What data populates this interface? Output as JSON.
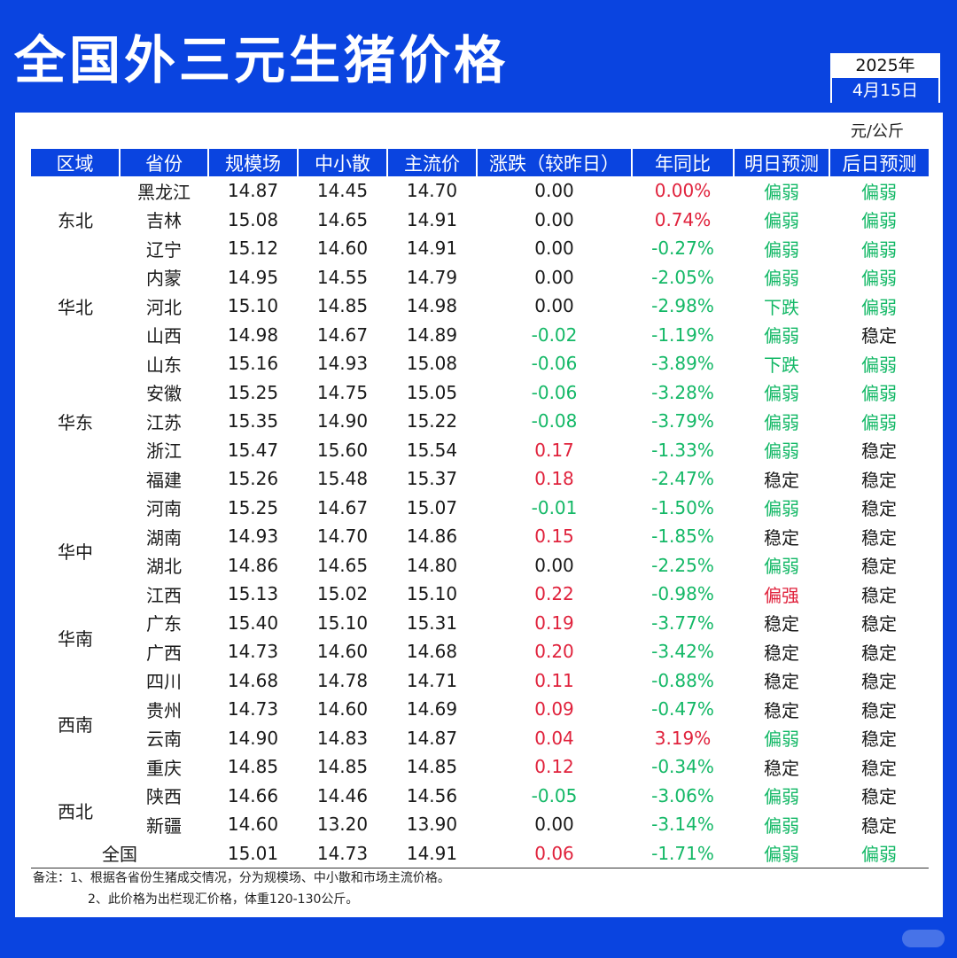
{
  "title": "全国外三元生猪价格",
  "date": {
    "year": "2025年",
    "day": "4月15日"
  },
  "unit": "元/公斤",
  "colors": {
    "up": "#e0223c",
    "down": "#13b866",
    "header_bg": "#0a44e0"
  },
  "table": {
    "headers": [
      "区域",
      "省份",
      "规模场",
      "中小散",
      "主流价",
      "涨跌（较昨日）",
      "年同比",
      "明日预测",
      "后日预测"
    ],
    "groups": [
      {
        "region": "东北",
        "rows": [
          {
            "province": "黑龙江",
            "large": "14.87",
            "small": "14.45",
            "main": "14.70",
            "change": "0.00",
            "change_color": "black",
            "yoy": "0.00%",
            "yoy_color": "red",
            "tomorrow": "偏弱",
            "tomorrow_color": "green",
            "after": "偏弱",
            "after_color": "green"
          },
          {
            "province": "吉林",
            "large": "15.08",
            "small": "14.65",
            "main": "14.91",
            "change": "0.00",
            "change_color": "black",
            "yoy": "0.74%",
            "yoy_color": "red",
            "tomorrow": "偏弱",
            "tomorrow_color": "green",
            "after": "偏弱",
            "after_color": "green"
          },
          {
            "province": "辽宁",
            "large": "15.12",
            "small": "14.60",
            "main": "14.91",
            "change": "0.00",
            "change_color": "black",
            "yoy": "-0.27%",
            "yoy_color": "green",
            "tomorrow": "偏弱",
            "tomorrow_color": "green",
            "after": "偏弱",
            "after_color": "green"
          }
        ]
      },
      {
        "region": "华北",
        "rows": [
          {
            "province": "内蒙",
            "large": "14.95",
            "small": "14.55",
            "main": "14.79",
            "change": "0.00",
            "change_color": "black",
            "yoy": "-2.05%",
            "yoy_color": "green",
            "tomorrow": "偏弱",
            "tomorrow_color": "green",
            "after": "偏弱",
            "after_color": "green"
          },
          {
            "province": "河北",
            "large": "15.10",
            "small": "14.85",
            "main": "14.98",
            "change": "0.00",
            "change_color": "black",
            "yoy": "-2.98%",
            "yoy_color": "green",
            "tomorrow": "下跌",
            "tomorrow_color": "green",
            "after": "偏弱",
            "after_color": "green"
          },
          {
            "province": "山西",
            "large": "14.98",
            "small": "14.67",
            "main": "14.89",
            "change": "-0.02",
            "change_color": "green",
            "yoy": "-1.19%",
            "yoy_color": "green",
            "tomorrow": "偏弱",
            "tomorrow_color": "green",
            "after": "稳定",
            "after_color": "black"
          }
        ]
      },
      {
        "region": "华东",
        "rows": [
          {
            "province": "山东",
            "large": "15.16",
            "small": "14.93",
            "main": "15.08",
            "change": "-0.06",
            "change_color": "green",
            "yoy": "-3.89%",
            "yoy_color": "green",
            "tomorrow": "下跌",
            "tomorrow_color": "green",
            "after": "偏弱",
            "after_color": "green"
          },
          {
            "province": "安徽",
            "large": "15.25",
            "small": "14.75",
            "main": "15.05",
            "change": "-0.06",
            "change_color": "green",
            "yoy": "-3.28%",
            "yoy_color": "green",
            "tomorrow": "偏弱",
            "tomorrow_color": "green",
            "after": "偏弱",
            "after_color": "green"
          },
          {
            "province": "江苏",
            "large": "15.35",
            "small": "14.90",
            "main": "15.22",
            "change": "-0.08",
            "change_color": "green",
            "yoy": "-3.79%",
            "yoy_color": "green",
            "tomorrow": "偏弱",
            "tomorrow_color": "green",
            "after": "偏弱",
            "after_color": "green"
          },
          {
            "province": "浙江",
            "large": "15.47",
            "small": "15.60",
            "main": "15.54",
            "change": "0.17",
            "change_color": "red",
            "yoy": "-1.33%",
            "yoy_color": "green",
            "tomorrow": "偏弱",
            "tomorrow_color": "green",
            "after": "稳定",
            "after_color": "black"
          },
          {
            "province": "福建",
            "large": "15.26",
            "small": "15.48",
            "main": "15.37",
            "change": "0.18",
            "change_color": "red",
            "yoy": "-2.47%",
            "yoy_color": "green",
            "tomorrow": "稳定",
            "tomorrow_color": "black",
            "after": "稳定",
            "after_color": "black"
          }
        ]
      },
      {
        "region": "华中",
        "rows": [
          {
            "province": "河南",
            "large": "15.25",
            "small": "14.67",
            "main": "15.07",
            "change": "-0.01",
            "change_color": "green",
            "yoy": "-1.50%",
            "yoy_color": "green",
            "tomorrow": "偏弱",
            "tomorrow_color": "green",
            "after": "稳定",
            "after_color": "black"
          },
          {
            "province": "湖南",
            "large": "14.93",
            "small": "14.70",
            "main": "14.86",
            "change": "0.15",
            "change_color": "red",
            "yoy": "-1.85%",
            "yoy_color": "green",
            "tomorrow": "稳定",
            "tomorrow_color": "black",
            "after": "稳定",
            "after_color": "black"
          },
          {
            "province": "湖北",
            "large": "14.86",
            "small": "14.65",
            "main": "14.80",
            "change": "0.00",
            "change_color": "black",
            "yoy": "-2.25%",
            "yoy_color": "green",
            "tomorrow": "偏弱",
            "tomorrow_color": "green",
            "after": "稳定",
            "after_color": "black"
          },
          {
            "province": "江西",
            "large": "15.13",
            "small": "15.02",
            "main": "15.10",
            "change": "0.22",
            "change_color": "red",
            "yoy": "-0.98%",
            "yoy_color": "green",
            "tomorrow": "偏强",
            "tomorrow_color": "red",
            "after": "稳定",
            "after_color": "black"
          }
        ]
      },
      {
        "region": "华南",
        "rows": [
          {
            "province": "广东",
            "large": "15.40",
            "small": "15.10",
            "main": "15.31",
            "change": "0.19",
            "change_color": "red",
            "yoy": "-3.77%",
            "yoy_color": "green",
            "tomorrow": "稳定",
            "tomorrow_color": "black",
            "after": "稳定",
            "after_color": "black"
          },
          {
            "province": "广西",
            "large": "14.73",
            "small": "14.60",
            "main": "14.68",
            "change": "0.20",
            "change_color": "red",
            "yoy": "-3.42%",
            "yoy_color": "green",
            "tomorrow": "稳定",
            "tomorrow_color": "black",
            "after": "稳定",
            "after_color": "black"
          }
        ]
      },
      {
        "region": "西南",
        "rows": [
          {
            "province": "四川",
            "large": "14.68",
            "small": "14.78",
            "main": "14.71",
            "change": "0.11",
            "change_color": "red",
            "yoy": "-0.88%",
            "yoy_color": "green",
            "tomorrow": "稳定",
            "tomorrow_color": "black",
            "after": "稳定",
            "after_color": "black"
          },
          {
            "province": "贵州",
            "large": "14.73",
            "small": "14.60",
            "main": "14.69",
            "change": "0.09",
            "change_color": "red",
            "yoy": "-0.47%",
            "yoy_color": "green",
            "tomorrow": "稳定",
            "tomorrow_color": "black",
            "after": "稳定",
            "after_color": "black"
          },
          {
            "province": "云南",
            "large": "14.90",
            "small": "14.83",
            "main": "14.87",
            "change": "0.04",
            "change_color": "red",
            "yoy": "3.19%",
            "yoy_color": "red",
            "tomorrow": "偏弱",
            "tomorrow_color": "green",
            "after": "稳定",
            "after_color": "black"
          },
          {
            "province": "重庆",
            "large": "14.85",
            "small": "14.85",
            "main": "14.85",
            "change": "0.12",
            "change_color": "red",
            "yoy": "-0.34%",
            "yoy_color": "green",
            "tomorrow": "稳定",
            "tomorrow_color": "black",
            "after": "稳定",
            "after_color": "black"
          }
        ]
      },
      {
        "region": "西北",
        "rows": [
          {
            "province": "陕西",
            "large": "14.66",
            "small": "14.46",
            "main": "14.56",
            "change": "-0.05",
            "change_color": "green",
            "yoy": "-3.06%",
            "yoy_color": "green",
            "tomorrow": "偏弱",
            "tomorrow_color": "green",
            "after": "稳定",
            "after_color": "black"
          },
          {
            "province": "新疆",
            "large": "14.60",
            "small": "13.20",
            "main": "13.90",
            "change": "0.00",
            "change_color": "black",
            "yoy": "-3.14%",
            "yoy_color": "green",
            "tomorrow": "偏弱",
            "tomorrow_color": "green",
            "after": "稳定",
            "after_color": "black"
          }
        ]
      }
    ],
    "national": {
      "label": "全国",
      "large": "15.01",
      "small": "14.73",
      "main": "14.91",
      "change": "0.06",
      "change_color": "red",
      "yoy": "-1.71%",
      "yoy_color": "green",
      "tomorrow": "偏弱",
      "tomorrow_color": "green",
      "after": "偏弱",
      "after_color": "green"
    }
  },
  "notes": [
    "备注：1、根据各省份生猪成交情况，分为规模场、中小散和市场主流价格。",
    "2、此价格为出栏现汇价格，体重120-130公斤。"
  ]
}
